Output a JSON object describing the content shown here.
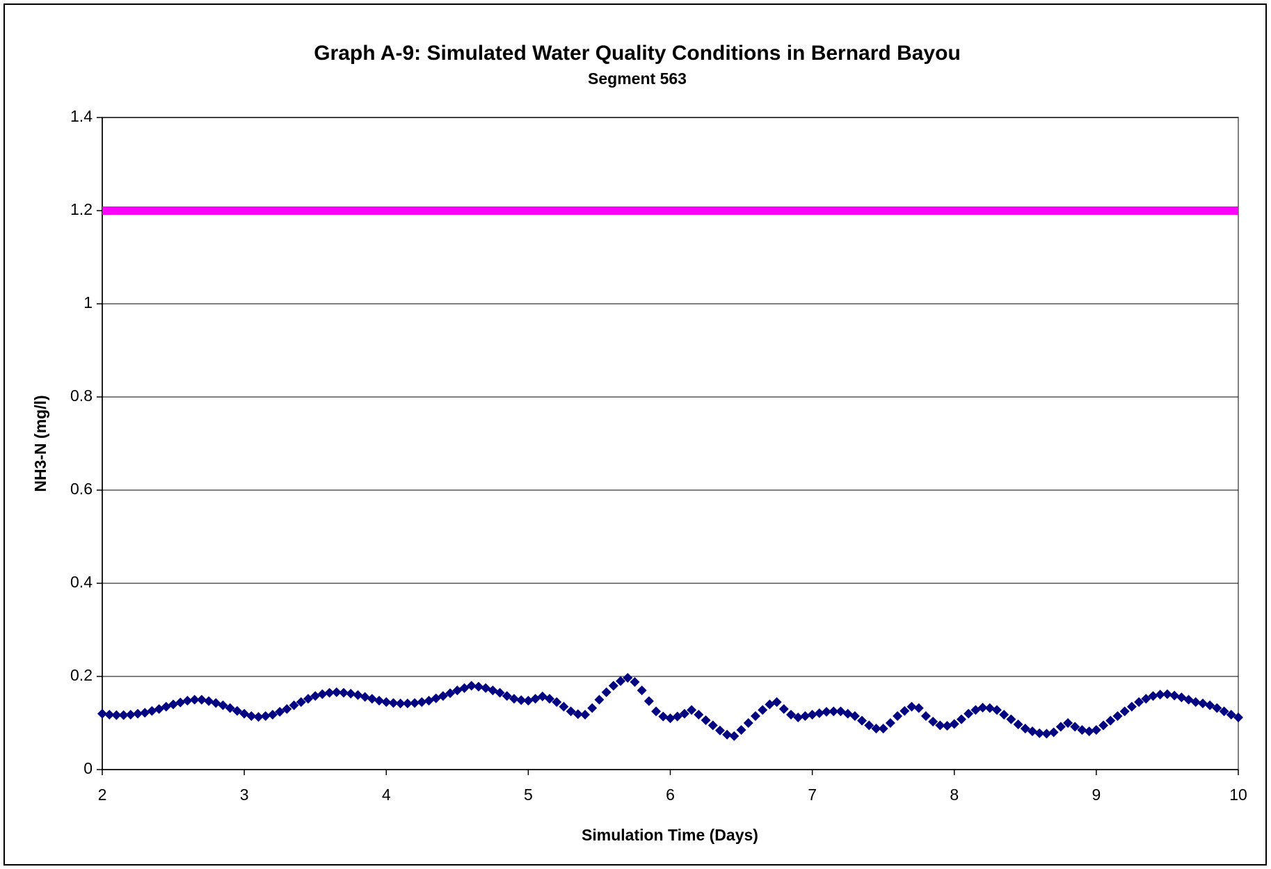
{
  "chart_data": {
    "type": "scatter",
    "title": "Graph A-9:  Simulated Water Quality Conditions in Bernard Bayou",
    "subtitle": "Segment 563",
    "x_label": "Simulation Time (Days)",
    "y_label": "NH3-N (mg/l)",
    "xlim": [
      2,
      10
    ],
    "xticks": [
      2,
      3,
      4,
      5,
      6,
      7,
      8,
      9,
      10
    ],
    "ylim": [
      0,
      1.4
    ],
    "yticks": [
      0,
      0.2,
      0.4,
      0.6,
      0.8,
      1,
      1.2,
      1.4
    ],
    "grid": true,
    "series": [
      {
        "color": "#ff00ff",
        "style": "line",
        "x": [
          2,
          10
        ],
        "values": [
          1.2,
          1.2
        ]
      },
      {
        "color": "#000080",
        "style": "marker",
        "x": [
          2,
          2.05,
          2.1,
          2.15,
          2.2,
          2.25,
          2.3,
          2.35,
          2.4,
          2.45,
          2.5,
          2.55,
          2.6,
          2.65,
          2.7,
          2.75,
          2.8,
          2.85,
          2.9,
          2.95,
          3,
          3.05,
          3.1,
          3.15,
          3.2,
          3.25,
          3.3,
          3.35,
          3.4,
          3.45,
          3.5,
          3.55,
          3.6,
          3.65,
          3.7,
          3.75,
          3.8,
          3.85,
          3.9,
          3.95,
          4,
          4.05,
          4.1,
          4.15,
          4.2,
          4.25,
          4.3,
          4.35,
          4.4,
          4.45,
          4.5,
          4.55,
          4.6,
          4.65,
          4.7,
          4.75,
          4.8,
          4.85,
          4.9,
          4.95,
          5,
          5.05,
          5.1,
          5.15,
          5.2,
          5.25,
          5.3,
          5.35,
          5.4,
          5.45,
          5.5,
          5.55,
          5.6,
          5.65,
          5.7,
          5.75,
          5.8,
          5.85,
          5.9,
          5.95,
          6,
          6.05,
          6.1,
          6.15,
          6.2,
          6.25,
          6.3,
          6.35,
          6.4,
          6.45,
          6.5,
          6.55,
          6.6,
          6.65,
          6.7,
          6.75,
          6.8,
          6.85,
          6.9,
          6.95,
          7,
          7.05,
          7.1,
          7.15,
          7.2,
          7.25,
          7.3,
          7.35,
          7.4,
          7.45,
          7.5,
          7.55,
          7.6,
          7.65,
          7.7,
          7.75,
          7.8,
          7.85,
          7.9,
          7.95,
          8,
          8.05,
          8.1,
          8.15,
          8.2,
          8.25,
          8.3,
          8.35,
          8.4,
          8.45,
          8.5,
          8.55,
          8.6,
          8.65,
          8.7,
          8.75,
          8.8,
          8.85,
          8.9,
          8.95,
          9,
          9.05,
          9.1,
          9.15,
          9.2,
          9.25,
          9.3,
          9.35,
          9.4,
          9.45,
          9.5,
          9.55,
          9.6,
          9.65,
          9.7,
          9.75,
          9.8,
          9.85,
          9.9,
          9.95,
          10
        ],
        "values": [
          0.12,
          0.118,
          0.117,
          0.117,
          0.118,
          0.12,
          0.122,
          0.126,
          0.13,
          0.135,
          0.14,
          0.144,
          0.148,
          0.15,
          0.15,
          0.147,
          0.143,
          0.138,
          0.132,
          0.126,
          0.12,
          0.115,
          0.113,
          0.115,
          0.118,
          0.124,
          0.13,
          0.138,
          0.145,
          0.152,
          0.158,
          0.162,
          0.165,
          0.166,
          0.165,
          0.163,
          0.16,
          0.156,
          0.152,
          0.148,
          0.145,
          0.143,
          0.142,
          0.142,
          0.143,
          0.145,
          0.148,
          0.153,
          0.158,
          0.164,
          0.17,
          0.175,
          0.18,
          0.178,
          0.175,
          0.17,
          0.165,
          0.158,
          0.152,
          0.149,
          0.148,
          0.152,
          0.157,
          0.152,
          0.145,
          0.135,
          0.125,
          0.119,
          0.118,
          0.132,
          0.15,
          0.166,
          0.18,
          0.19,
          0.197,
          0.188,
          0.17,
          0.147,
          0.125,
          0.114,
          0.11,
          0.114,
          0.12,
          0.128,
          0.118,
          0.106,
          0.095,
          0.084,
          0.075,
          0.072,
          0.085,
          0.1,
          0.115,
          0.128,
          0.14,
          0.145,
          0.13,
          0.118,
          0.112,
          0.115,
          0.118,
          0.121,
          0.124,
          0.125,
          0.125,
          0.12,
          0.115,
          0.105,
          0.095,
          0.088,
          0.088,
          0.1,
          0.115,
          0.126,
          0.135,
          0.132,
          0.115,
          0.103,
          0.095,
          0.094,
          0.098,
          0.108,
          0.12,
          0.128,
          0.133,
          0.132,
          0.128,
          0.118,
          0.108,
          0.097,
          0.088,
          0.082,
          0.078,
          0.077,
          0.08,
          0.092,
          0.1,
          0.092,
          0.085,
          0.082,
          0.085,
          0.095,
          0.105,
          0.115,
          0.125,
          0.135,
          0.145,
          0.152,
          0.158,
          0.161,
          0.162,
          0.159,
          0.155,
          0.15,
          0.145,
          0.142,
          0.138,
          0.132,
          0.125,
          0.118,
          0.112
        ]
      }
    ]
  }
}
